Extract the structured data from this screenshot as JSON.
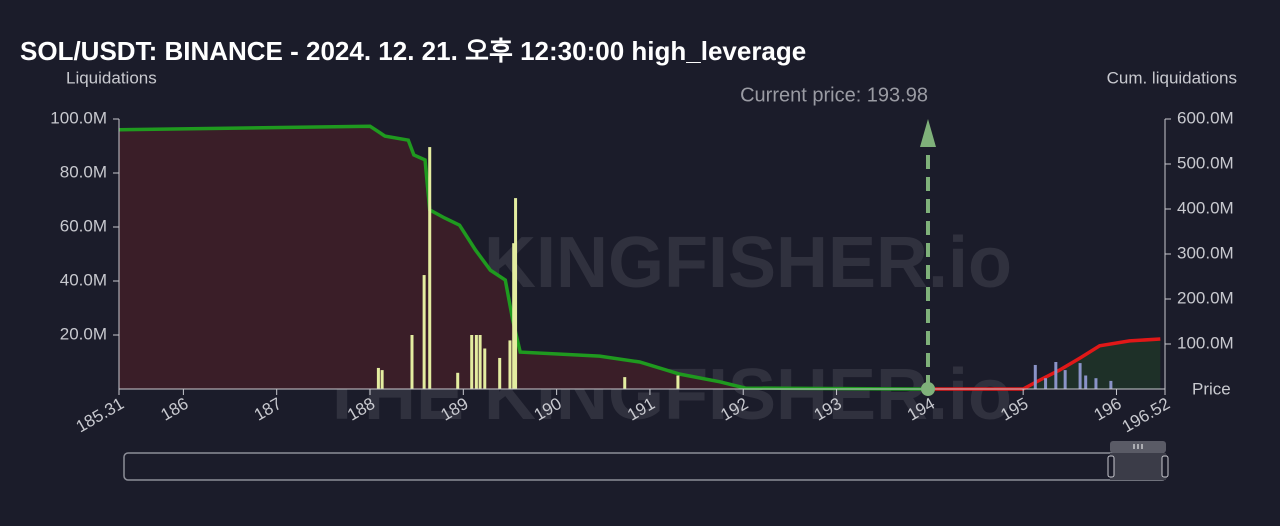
{
  "chart_data": {
    "type": "bar",
    "title": "SOL/USDT: BINANCE - 2024. 12. 21. 오후 12:30:00 high_leverage",
    "y_label": "Liquidations",
    "y2_label": "Cum. liquidations",
    "x_label": "Price",
    "watermark": "THE KINGFISHER.io",
    "current_price": {
      "text": "Current price: 193.98",
      "value": 193.98
    },
    "xlim": [
      185.31,
      196.52
    ],
    "xticks": [
      185.31,
      186,
      187,
      188,
      189,
      190,
      191,
      192,
      193,
      194,
      195,
      196,
      196.52
    ],
    "ylim": [
      0,
      100
    ],
    "yticks": [
      {
        "value": 20,
        "label": "20.0M"
      },
      {
        "value": 40,
        "label": "40.0M"
      },
      {
        "value": 60,
        "label": "60.0M"
      },
      {
        "value": 80,
        "label": "80.0M"
      },
      {
        "value": 100,
        "label": "100.0M"
      }
    ],
    "y2lim": [
      0,
      600
    ],
    "y2ticks": [
      {
        "value": 100,
        "label": "100.0M"
      },
      {
        "value": 200,
        "label": "200.0M"
      },
      {
        "value": 300,
        "label": "300.0M"
      },
      {
        "value": 400,
        "label": "400.0M"
      },
      {
        "value": 500,
        "label": "500.0M"
      },
      {
        "value": 600,
        "label": "600.0M"
      }
    ],
    "series": [
      {
        "type": "area",
        "axis": "y2",
        "color": "#1f9a1f",
        "fill": "#3a1e28",
        "x": [
          185.31,
          188.0,
          188.16,
          188.41,
          188.47,
          188.59,
          188.64,
          188.8,
          188.96,
          189.13,
          189.29,
          189.45,
          189.53,
          189.61,
          190.46,
          190.89,
          191.32,
          191.75,
          192.02,
          193.95
        ],
        "values": [
          576,
          584,
          562,
          553,
          520,
          509,
          398,
          380,
          364,
          309,
          264,
          242,
          153,
          82,
          73,
          60,
          33,
          16,
          2,
          0
        ]
      },
      {
        "type": "area",
        "axis": "y2",
        "color": "#e01818",
        "fill": "#1e3028",
        "x": [
          193.95,
          195.0,
          195.18,
          195.39,
          195.61,
          195.82,
          196.14,
          196.47
        ],
        "values": [
          0,
          0,
          20,
          42,
          69,
          96,
          107,
          111
        ]
      },
      {
        "type": "bar",
        "color": "#e4eda0",
        "x": [
          188.09,
          188.13,
          188.45,
          188.58,
          188.64,
          188.94,
          189.09,
          189.14,
          189.18,
          189.23,
          189.39,
          189.5,
          189.54,
          189.56,
          190.73,
          191.3
        ],
        "values": [
          7.8,
          7,
          20,
          42.2,
          89.6,
          6,
          20,
          20,
          20,
          15,
          11.5,
          18,
          54,
          70.7,
          4.4,
          5
        ]
      },
      {
        "type": "bar",
        "color": "#8a93c8",
        "x": [
          195.13,
          195.24,
          195.35,
          195.45,
          195.61,
          195.67,
          195.78,
          195.94
        ],
        "values": [
          8.9,
          4,
          10,
          7,
          9.6,
          5,
          4,
          3
        ]
      }
    ]
  }
}
